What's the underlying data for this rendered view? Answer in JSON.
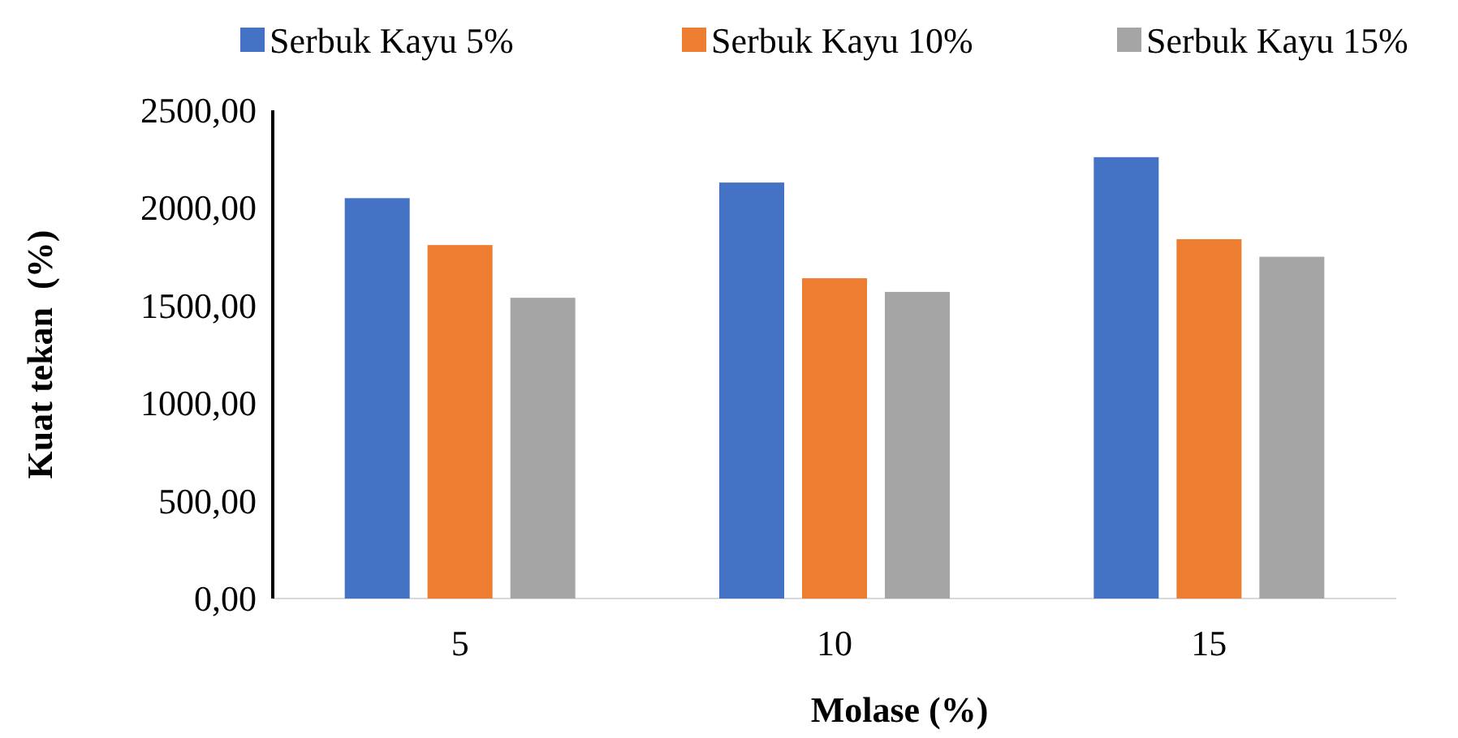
{
  "chart_data": {
    "type": "bar",
    "xlabel": "Molase (%)",
    "ylabel": "Kuat tekan  (%)",
    "categories": [
      "5",
      "10",
      "15"
    ],
    "series": [
      {
        "name": "Serbuk Kayu 5%",
        "color": "#4472c4",
        "values": [
          2050,
          2130,
          2260
        ]
      },
      {
        "name": "Serbuk Kayu 10%",
        "color": "#ed7d31",
        "values": [
          1810,
          1640,
          1840
        ]
      },
      {
        "name": "Serbuk Kayu 15%",
        "color": "#a5a5a5",
        "values": [
          1540,
          1570,
          1750
        ]
      }
    ],
    "ylim": [
      0,
      2500
    ],
    "yticks": [
      {
        "value": 0,
        "label": "0,00"
      },
      {
        "value": 500,
        "label": "500,00"
      },
      {
        "value": 1000,
        "label": "1000,00"
      },
      {
        "value": 1500,
        "label": "1500,00"
      },
      {
        "value": 2000,
        "label": "2000,00"
      },
      {
        "value": 2500,
        "label": "2500,00"
      }
    ],
    "legend": "top",
    "grid": false
  }
}
